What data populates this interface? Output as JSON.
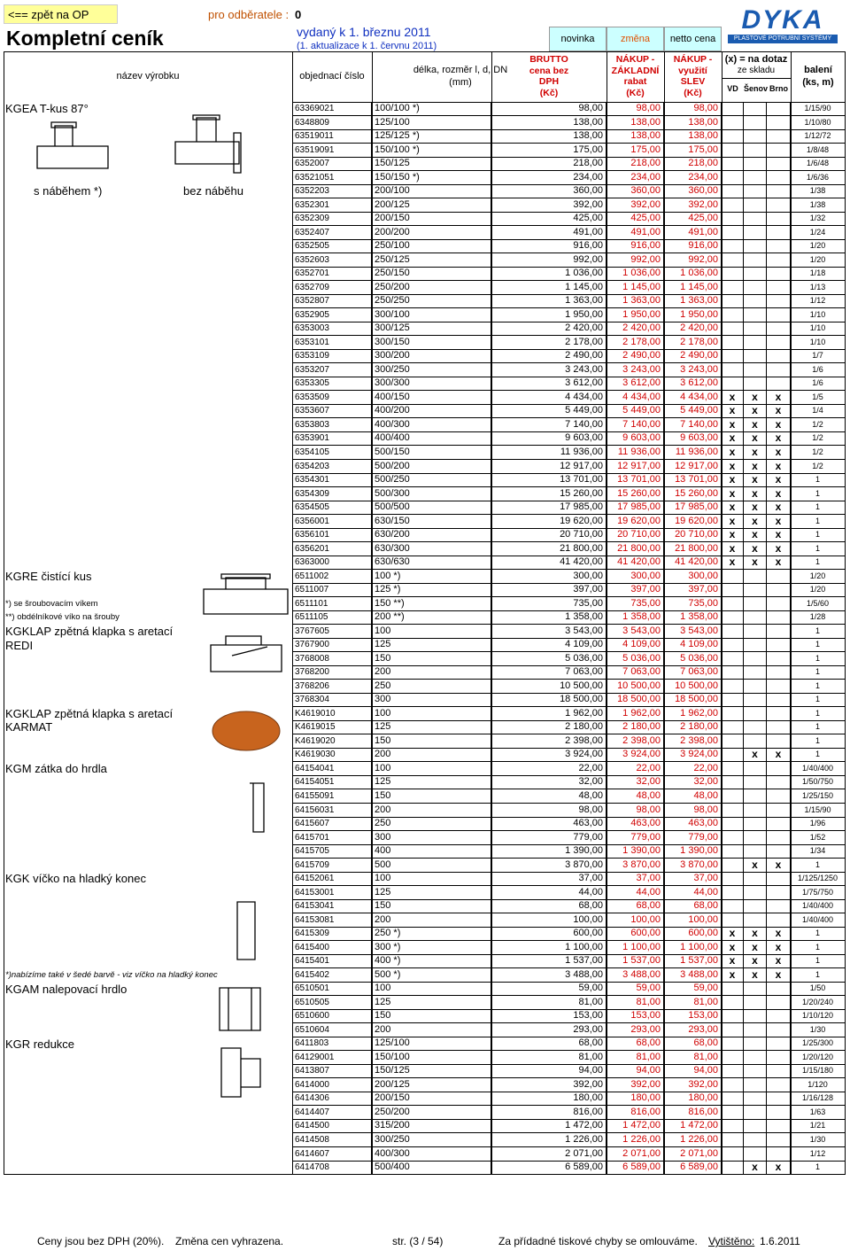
{
  "header": {
    "back_link": "<== zpět na OP",
    "customer_label": "pro odběratele :",
    "customer_value": "0",
    "title": "Kompletní ceník",
    "issued": "vydaný k 1. březnu 2011",
    "update": "(1. aktualizace k 1. červnu 2011)",
    "legend": [
      "novinka",
      "změna",
      "netto cena"
    ],
    "logo": "DYKA",
    "logo_sub": "PLASTOVÉ POTRUBNÍ SYSTÉMY"
  },
  "columns": {
    "name": "název výrobku",
    "code": "objednací číslo",
    "size": [
      "délka, rozměr l, d, DN",
      "(mm)"
    ],
    "brutto": [
      "BRUTTO",
      "cena bez",
      "DPH",
      "(Kč)"
    ],
    "basic": [
      "NÁKUP -",
      "ZÁKLADNÍ",
      "rabat",
      "(Kč)"
    ],
    "discount": [
      "NÁKUP -",
      "využití",
      "SLEV",
      "(Kč)"
    ],
    "stock_note": "(x) = na dotaz",
    "stock": "ze skladu",
    "vd": "VD",
    "senov": "Šenov",
    "brno": "Brno",
    "pack": [
      "balení",
      "(ks, m)"
    ]
  },
  "groups": [
    "KGEA T-kus 87°",
    "s náběhem *)",
    "bez náběhu",
    "KGRE čistící kus",
    "*) se šroubovacím víkem",
    "**) obdélníkové víko na šrouby",
    "KGKLAP zpětná klapka s aretací",
    "REDI",
    "KGKLAP zpětná klapka s aretací",
    "KARMAT",
    "KGM zátka do hrdla",
    "KGK víčko na hladký konec",
    "*)nabízíme také v šedé barvě - viz víčko na hladký konec",
    "KGAM nalepovací hrdlo",
    "KGR redukce"
  ],
  "rows": [
    [
      "63369021",
      "100/100 *)",
      "98,00",
      "98,00",
      "98,00",
      null,
      null,
      null,
      "1/15/90"
    ],
    [
      "6348809",
      "125/100",
      "138,00",
      "138,00",
      "138,00",
      null,
      null,
      null,
      "1/10/80"
    ],
    [
      "63519011",
      "125/125 *)",
      "138,00",
      "138,00",
      "138,00",
      null,
      null,
      null,
      "1/12/72"
    ],
    [
      "63519091",
      "150/100 *)",
      "175,00",
      "175,00",
      "175,00",
      null,
      null,
      null,
      "1/8/48"
    ],
    [
      "6352007",
      "150/125",
      "218,00",
      "218,00",
      "218,00",
      null,
      null,
      null,
      "1/6/48"
    ],
    [
      "63521051",
      "150/150 *)",
      "234,00",
      "234,00",
      "234,00",
      null,
      null,
      null,
      "1/6/36"
    ],
    [
      "6352203",
      "200/100",
      "360,00",
      "360,00",
      "360,00",
      null,
      null,
      null,
      "1/38"
    ],
    [
      "6352301",
      "200/125",
      "392,00",
      "392,00",
      "392,00",
      null,
      null,
      null,
      "1/38"
    ],
    [
      "6352309",
      "200/150",
      "425,00",
      "425,00",
      "425,00",
      null,
      null,
      null,
      "1/32"
    ],
    [
      "6352407",
      "200/200",
      "491,00",
      "491,00",
      "491,00",
      null,
      null,
      null,
      "1/24"
    ],
    [
      "6352505",
      "250/100",
      "916,00",
      "916,00",
      "916,00",
      null,
      null,
      null,
      "1/20"
    ],
    [
      "6352603",
      "250/125",
      "992,00",
      "992,00",
      "992,00",
      null,
      null,
      null,
      "1/20"
    ],
    [
      "6352701",
      "250/150",
      "1 036,00",
      "1 036,00",
      "1 036,00",
      null,
      null,
      null,
      "1/18"
    ],
    [
      "6352709",
      "250/200",
      "1 145,00",
      "1 145,00",
      "1 145,00",
      null,
      null,
      null,
      "1/13"
    ],
    [
      "6352807",
      "250/250",
      "1 363,00",
      "1 363,00",
      "1 363,00",
      null,
      null,
      null,
      "1/12"
    ],
    [
      "6352905",
      "300/100",
      "1 950,00",
      "1 950,00",
      "1 950,00",
      null,
      null,
      null,
      "1/10"
    ],
    [
      "6353003",
      "300/125",
      "2 420,00",
      "2 420,00",
      "2 420,00",
      null,
      null,
      null,
      "1/10"
    ],
    [
      "6353101",
      "300/150",
      "2 178,00",
      "2 178,00",
      "2 178,00",
      null,
      null,
      null,
      "1/10"
    ],
    [
      "6353109",
      "300/200",
      "2 490,00",
      "2 490,00",
      "2 490,00",
      null,
      null,
      null,
      "1/7"
    ],
    [
      "6353207",
      "300/250",
      "3 243,00",
      "3 243,00",
      "3 243,00",
      null,
      null,
      null,
      "1/6"
    ],
    [
      "6353305",
      "300/300",
      "3 612,00",
      "3 612,00",
      "3 612,00",
      null,
      null,
      null,
      "1/6"
    ],
    [
      "6353509",
      "400/150",
      "4 434,00",
      "4 434,00",
      "4 434,00",
      "x",
      "x",
      "x",
      "1/5"
    ],
    [
      "6353607",
      "400/200",
      "5 449,00",
      "5 449,00",
      "5 449,00",
      "x",
      "x",
      "x",
      "1/4"
    ],
    [
      "6353803",
      "400/300",
      "7 140,00",
      "7 140,00",
      "7 140,00",
      "x",
      "x",
      "x",
      "1/2"
    ],
    [
      "6353901",
      "400/400",
      "9 603,00",
      "9 603,00",
      "9 603,00",
      "x",
      "x",
      "x",
      "1/2"
    ],
    [
      "6354105",
      "500/150",
      "11 936,00",
      "11 936,00",
      "11 936,00",
      "x",
      "x",
      "x",
      "1/2"
    ],
    [
      "6354203",
      "500/200",
      "12 917,00",
      "12 917,00",
      "12 917,00",
      "x",
      "x",
      "x",
      "1/2"
    ],
    [
      "6354301",
      "500/250",
      "13 701,00",
      "13 701,00",
      "13 701,00",
      "x",
      "x",
      "x",
      "1"
    ],
    [
      "6354309",
      "500/300",
      "15 260,00",
      "15 260,00",
      "15 260,00",
      "x",
      "x",
      "x",
      "1"
    ],
    [
      "6354505",
      "500/500",
      "17 985,00",
      "17 985,00",
      "17 985,00",
      "x",
      "x",
      "x",
      "1"
    ],
    [
      "6356001",
      "630/150",
      "19 620,00",
      "19 620,00",
      "19 620,00",
      "x",
      "x",
      "x",
      "1"
    ],
    [
      "6356101",
      "630/200",
      "20 710,00",
      "20 710,00",
      "20 710,00",
      "x",
      "x",
      "x",
      "1"
    ],
    [
      "6356201",
      "630/300",
      "21 800,00",
      "21 800,00",
      "21 800,00",
      "x",
      "x",
      "x",
      "1"
    ],
    [
      "6363000",
      "630/630",
      "41 420,00",
      "41 420,00",
      "41 420,00",
      "x",
      "x",
      "x",
      "1"
    ],
    [
      "6511002",
      "100 *)",
      "300,00",
      "300,00",
      "300,00",
      null,
      null,
      null,
      "1/20"
    ],
    [
      "6511007",
      "125 *)",
      "397,00",
      "397,00",
      "397,00",
      null,
      null,
      null,
      "1/20"
    ],
    [
      "6511101",
      "150 **)",
      "735,00",
      "735,00",
      "735,00",
      null,
      null,
      null,
      "1/5/60"
    ],
    [
      "6511105",
      "200 **)",
      "1 358,00",
      "1 358,00",
      "1 358,00",
      null,
      null,
      null,
      "1/28"
    ],
    [
      "3767605",
      "100",
      "3 543,00",
      "3 543,00",
      "3 543,00",
      null,
      null,
      null,
      "1"
    ],
    [
      "3767900",
      "125",
      "4 109,00",
      "4 109,00",
      "4 109,00",
      null,
      null,
      null,
      "1"
    ],
    [
      "3768008",
      "150",
      "5 036,00",
      "5 036,00",
      "5 036,00",
      null,
      null,
      null,
      "1"
    ],
    [
      "3768200",
      "200",
      "7 063,00",
      "7 063,00",
      "7 063,00",
      null,
      null,
      null,
      "1"
    ],
    [
      "3768206",
      "250",
      "10 500,00",
      "10 500,00",
      "10 500,00",
      null,
      null,
      null,
      "1"
    ],
    [
      "3768304",
      "300",
      "18 500,00",
      "18 500,00",
      "18 500,00",
      null,
      null,
      null,
      "1"
    ],
    [
      "K4619010",
      "100",
      "1 962,00",
      "1 962,00",
      "1 962,00",
      null,
      null,
      null,
      "1"
    ],
    [
      "K4619015",
      "125",
      "2 180,00",
      "2 180,00",
      "2 180,00",
      null,
      null,
      null,
      "1"
    ],
    [
      "K4619020",
      "150",
      "2 398,00",
      "2 398,00",
      "2 398,00",
      null,
      null,
      null,
      "1"
    ],
    [
      "K4619030",
      "200",
      "3 924,00",
      "3 924,00",
      "3 924,00",
      null,
      "x",
      "x",
      "1"
    ],
    [
      "64154041",
      "100",
      "22,00",
      "22,00",
      "22,00",
      null,
      null,
      null,
      "1/40/400"
    ],
    [
      "64154051",
      "125",
      "32,00",
      "32,00",
      "32,00",
      null,
      null,
      null,
      "1/50/750"
    ],
    [
      "64155091",
      "150",
      "48,00",
      "48,00",
      "48,00",
      null,
      null,
      null,
      "1/25/150"
    ],
    [
      "64156031",
      "200",
      "98,00",
      "98,00",
      "98,00",
      null,
      null,
      null,
      "1/15/90"
    ],
    [
      "6415607",
      "250",
      "463,00",
      "463,00",
      "463,00",
      null,
      null,
      null,
      "1/96"
    ],
    [
      "6415701",
      "300",
      "779,00",
      "779,00",
      "779,00",
      null,
      null,
      null,
      "1/52"
    ],
    [
      "6415705",
      "400",
      "1 390,00",
      "1 390,00",
      "1 390,00",
      null,
      null,
      null,
      "1/34"
    ],
    [
      "6415709",
      "500",
      "3 870,00",
      "3 870,00",
      "3 870,00",
      null,
      "x",
      "x",
      "1"
    ],
    [
      "64152061",
      "100",
      "37,00",
      "37,00",
      "37,00",
      null,
      null,
      null,
      "1/125/1250"
    ],
    [
      "64153001",
      "125",
      "44,00",
      "44,00",
      "44,00",
      null,
      null,
      null,
      "1/75/750"
    ],
    [
      "64153041",
      "150",
      "68,00",
      "68,00",
      "68,00",
      null,
      null,
      null,
      "1/40/400"
    ],
    [
      "64153081",
      "200",
      "100,00",
      "100,00",
      "100,00",
      null,
      null,
      null,
      "1/40/400"
    ],
    [
      "6415309",
      "250 *)",
      "600,00",
      "600,00",
      "600,00",
      "x",
      "x",
      "x",
      "1"
    ],
    [
      "6415400",
      "300 *)",
      "1 100,00",
      "1 100,00",
      "1 100,00",
      "x",
      "x",
      "x",
      "1"
    ],
    [
      "6415401",
      "400 *)",
      "1 537,00",
      "1 537,00",
      "1 537,00",
      "x",
      "x",
      "x",
      "1"
    ],
    [
      "6415402",
      "500 *)",
      "3 488,00",
      "3 488,00",
      "3 488,00",
      "x",
      "x",
      "x",
      "1"
    ],
    [
      "6510501",
      "100",
      "59,00",
      "59,00",
      "59,00",
      null,
      null,
      null,
      "1/50"
    ],
    [
      "6510505",
      "125",
      "81,00",
      "81,00",
      "81,00",
      null,
      null,
      null,
      "1/20/240"
    ],
    [
      "6510600",
      "150",
      "153,00",
      "153,00",
      "153,00",
      null,
      null,
      null,
      "1/10/120"
    ],
    [
      "6510604",
      "200",
      "293,00",
      "293,00",
      "293,00",
      null,
      null,
      null,
      "1/30"
    ],
    [
      "6411803",
      "125/100",
      "68,00",
      "68,00",
      "68,00",
      null,
      null,
      null,
      "1/25/300"
    ],
    [
      "64129001",
      "150/100",
      "81,00",
      "81,00",
      "81,00",
      null,
      null,
      null,
      "1/20/120"
    ],
    [
      "6413807",
      "150/125",
      "94,00",
      "94,00",
      "94,00",
      null,
      null,
      null,
      "1/15/180"
    ],
    [
      "6414000",
      "200/125",
      "392,00",
      "392,00",
      "392,00",
      null,
      null,
      null,
      "1/120"
    ],
    [
      "6414306",
      "200/150",
      "180,00",
      "180,00",
      "180,00",
      null,
      null,
      null,
      "1/16/128"
    ],
    [
      "6414407",
      "250/200",
      "816,00",
      "816,00",
      "816,00",
      null,
      null,
      null,
      "1/63"
    ],
    [
      "6414500",
      "315/200",
      "1 472,00",
      "1 472,00",
      "1 472,00",
      null,
      null,
      null,
      "1/21"
    ],
    [
      "6414508",
      "300/250",
      "1 226,00",
      "1 226,00",
      "1 226,00",
      null,
      null,
      null,
      "1/30"
    ],
    [
      "6414607",
      "400/300",
      "2 071,00",
      "2 071,00",
      "2 071,00",
      null,
      null,
      null,
      "1/12"
    ],
    [
      "6414708",
      "500/400",
      "6 589,00",
      "6 589,00",
      "6 589,00",
      null,
      "x",
      "x",
      "1"
    ]
  ],
  "footer": {
    "vat": "Ceny jsou bez DPH (20%).",
    "change": "Změna cen vyhrazena.",
    "page": "str. (3 / 54)",
    "apology": "Za přídadné tiskové chyby se omlouváme.",
    "printed_label": "Vytištěno:",
    "printed_date": "1.6.2011"
  }
}
